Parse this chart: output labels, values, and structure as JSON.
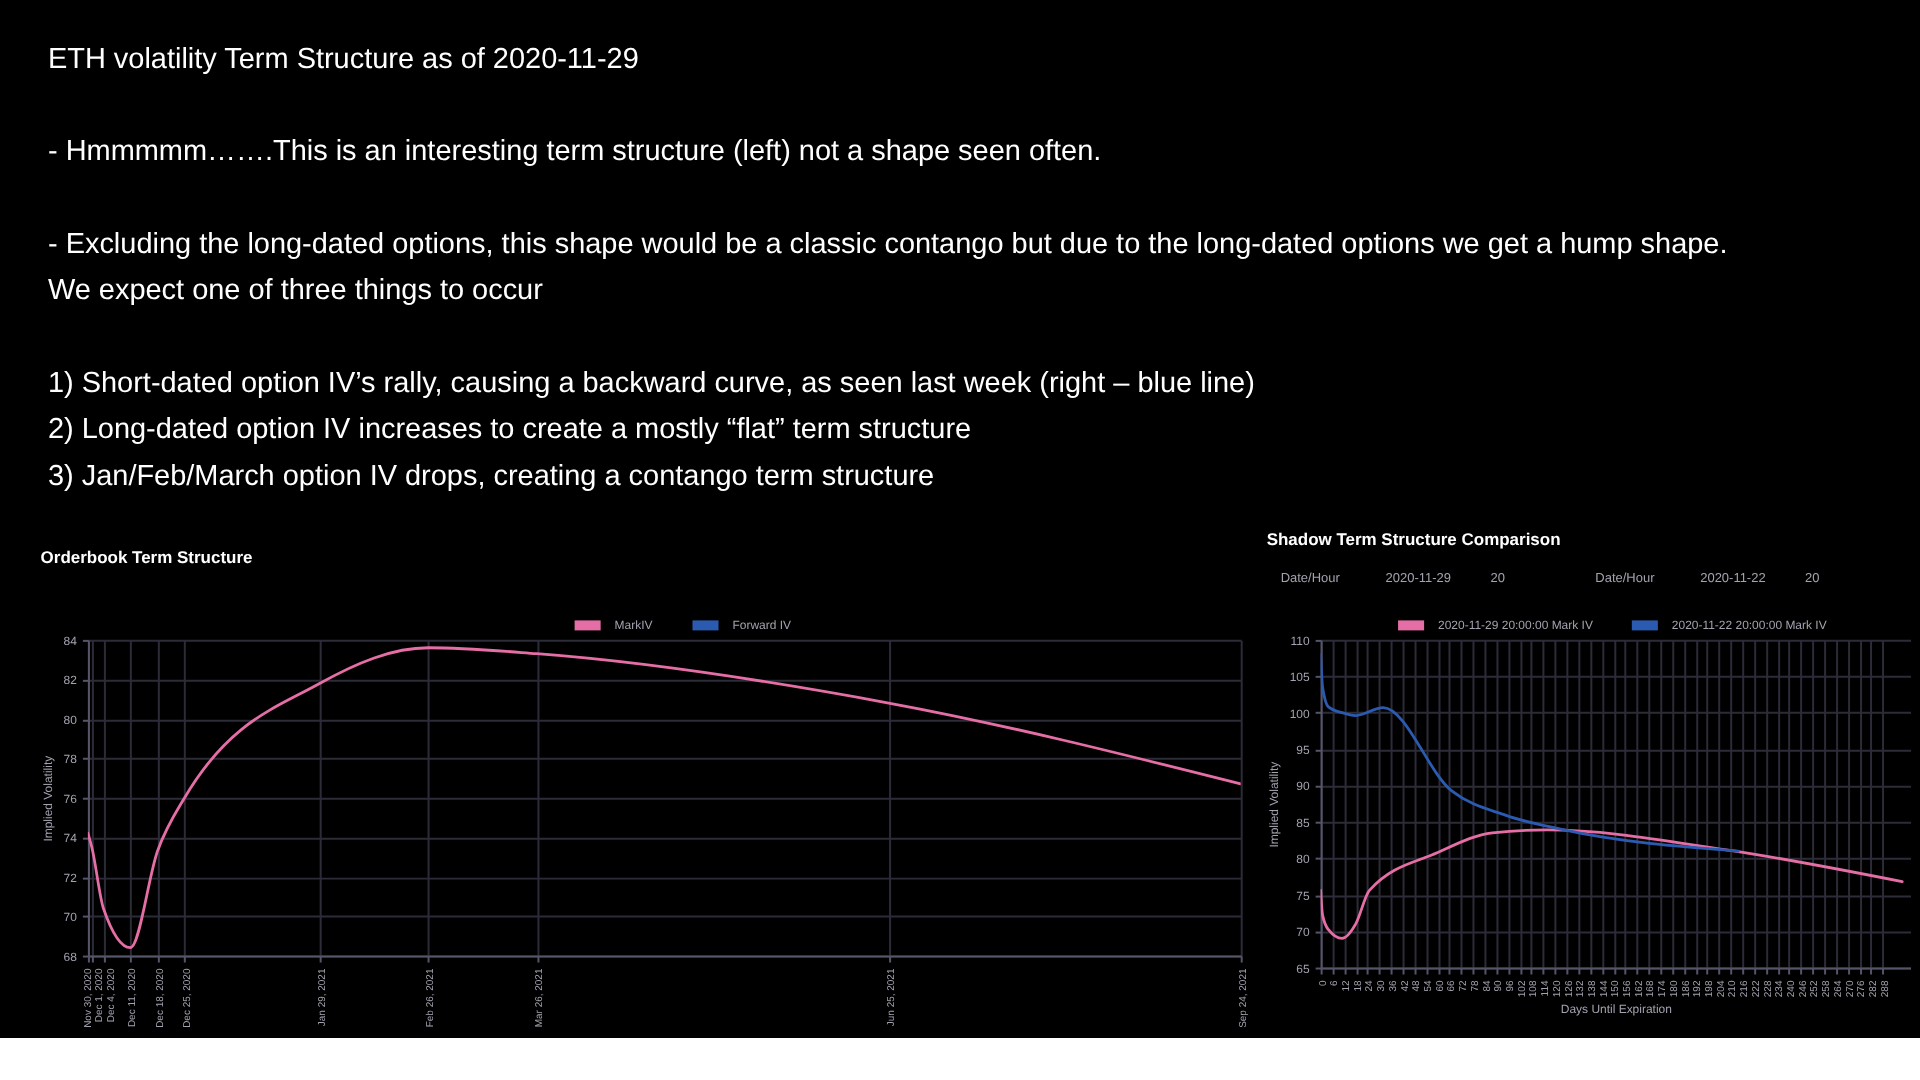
{
  "chart_data": [
    {
      "type": "other",
      "title": "ETH volatility Term Structure as of 2020-11-29",
      "annotations": [
        "- Hmmmmm…….This is an interesting term structure (left) not a shape seen often.",
        "- Excluding the long-dated options, this shape would be a classic contango but due to the long-dated options we get a hump shape.\nWe expect one of three things to occur",
        "1) Short-dated option IV’s rally, causing a backward curve, as seen last week (right – blue line)\n2) Long-dated option IV increases to create a mostly “flat” term structure\n3) Jan/Feb/March option IV drops, creating a contango term structure"
      ]
    },
    {
      "type": "line",
      "title": "Orderbook Term Structure",
      "ylabel": "Implied Volatility",
      "x": [
        "2020-11-30",
        "2020-12-01",
        "2020-12-04",
        "2020-12-11",
        "2020-12-18",
        "2020-12-25",
        "2021-01-29",
        "2021-02-26",
        "2021-03-26",
        "2021-06-25",
        "2021-09-24"
      ],
      "series": [
        {
          "name": "MarkIV",
          "color": "#e46ea5",
          "values": [
            74.2,
            73.5,
            70.4,
            68.4,
            73.3,
            76.0,
            81.8,
            83.6,
            83.3,
            80.8,
            76.7
          ]
        },
        {
          "name": "Forward IV",
          "color": "#2b5bb0",
          "values": [
            null,
            null,
            null,
            null,
            null,
            null,
            null,
            null,
            null,
            null,
            null
          ]
        }
      ],
      "xlim": [
        "2020-11-30",
        "2021-09-24"
      ],
      "xticks": [
        {
          "value": "2020-11-30",
          "label": "Nov 30, 2020"
        },
        {
          "value": "2020-12-01",
          "label": "Dec 1, 2020"
        },
        {
          "value": "2020-12-04",
          "label": "Dec 4, 2020"
        },
        {
          "value": "2020-12-11",
          "label": "Dec 11, 2020"
        },
        {
          "value": "2020-12-18",
          "label": "Dec 18, 2020"
        },
        {
          "value": "2020-12-25",
          "label": "Dec 25, 2020"
        },
        {
          "value": "2021-01-29",
          "label": "Jan 29, 2021"
        },
        {
          "value": "2021-02-26",
          "label": "Feb 26, 2021"
        },
        {
          "value": "2021-03-26",
          "label": "Mar 26, 2021"
        },
        {
          "value": "2021-06-25",
          "label": "Jun 25, 2021"
        },
        {
          "value": "2021-09-24",
          "label": "Sep 24, 2021"
        }
      ],
      "ylim": [
        68,
        84
      ],
      "yticks": [
        68,
        70,
        72,
        74,
        76,
        78,
        80,
        82,
        84
      ],
      "grid": true,
      "legend": "top"
    },
    {
      "type": "line",
      "title": "Shadow Term Structure Comparison",
      "xlabel": "Days Until Expiration",
      "ylabel": "Implied Volatility",
      "series": [
        {
          "name": "2020-11-29 20:00:00 Mark IV",
          "color": "#e46ea5",
          "x": [
            0,
            1,
            4,
            11,
            18,
            25,
            60,
            88,
            116,
            207,
            298
          ],
          "values": [
            75.6,
            72.2,
            70.2,
            69.0,
            71.0,
            75.6,
            80.8,
            83.5,
            83.9,
            81.2,
            76.8
          ]
        },
        {
          "name": "2020-11-22 20:00:00 Mark IV",
          "color": "#2b5bb0",
          "x": [
            0,
            1,
            4,
            11,
            18,
            32,
            67,
            95,
            123,
            214
          ],
          "values": [
            108.0,
            103.5,
            100.8,
            100.0,
            99.6,
            100.7,
            89.3,
            85.9,
            84.0,
            81.0
          ]
        }
      ],
      "xlim": [
        0,
        302
      ],
      "xticks": [
        0,
        6,
        12,
        18,
        24,
        30,
        36,
        42,
        48,
        54,
        60,
        66,
        72,
        78,
        84,
        90,
        96,
        102,
        108,
        114,
        120,
        126,
        132,
        138,
        144,
        150,
        156,
        162,
        168,
        174,
        180,
        186,
        192,
        198,
        204,
        210,
        216,
        222,
        228,
        234,
        240,
        246,
        252,
        258,
        264,
        270,
        276,
        282,
        288
      ],
      "ylim": [
        65,
        110
      ],
      "yticks": [
        65,
        70,
        75,
        80,
        85,
        90,
        95,
        100,
        105,
        110
      ],
      "grid": true,
      "legend": "top",
      "annotations": [
        "Date/Hour",
        "2020-11-29",
        "20",
        "Date/Hour",
        "2020-11-22",
        "20"
      ]
    }
  ]
}
